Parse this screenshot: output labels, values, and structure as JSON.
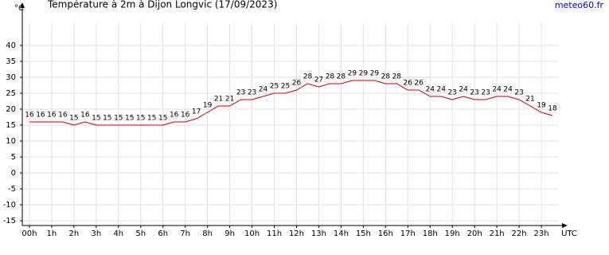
{
  "chart_data": {
    "type": "line",
    "title": "Température à 2m à Dijon Longvic (17/09/2023)",
    "source": "meteo60.fr",
    "y_label": "°C",
    "x_label": "UTC",
    "x": [
      0,
      0.5,
      1,
      1.5,
      2,
      2.5,
      3,
      3.5,
      4,
      4.5,
      5,
      5.5,
      6,
      6.5,
      7,
      7.5,
      8,
      8.5,
      9,
      9.5,
      10,
      10.5,
      11,
      11.5,
      12,
      12.5,
      13,
      13.5,
      14,
      14.5,
      15,
      15.5,
      16,
      16.5,
      17,
      17.5,
      18,
      18.5,
      19,
      19.5,
      20,
      20.5,
      21,
      21.5,
      22,
      22.5,
      23,
      23.5
    ],
    "series": [
      {
        "name": "Température",
        "color": "#cc0000",
        "values": [
          16,
          16,
          16,
          16,
          15,
          16,
          15,
          15,
          15,
          15,
          15,
          15,
          15,
          16,
          16,
          17,
          19,
          21,
          21,
          23,
          23,
          24,
          25,
          25,
          26,
          28,
          27,
          28,
          28,
          29,
          29,
          29,
          28,
          28,
          26,
          26,
          24,
          24,
          23,
          24,
          23,
          23,
          24,
          24,
          23,
          21,
          19,
          18
        ]
      }
    ],
    "xlim": [
      -0.32,
      24
    ],
    "xticks": [
      {
        "value": 0,
        "label": "00h"
      },
      {
        "value": 1,
        "label": "1h"
      },
      {
        "value": 2,
        "label": "2h"
      },
      {
        "value": 3,
        "label": "3h"
      },
      {
        "value": 4,
        "label": "4h"
      },
      {
        "value": 5,
        "label": "5h"
      },
      {
        "value": 6,
        "label": "6h"
      },
      {
        "value": 7,
        "label": "7h"
      },
      {
        "value": 8,
        "label": "8h"
      },
      {
        "value": 9,
        "label": "9h"
      },
      {
        "value": 10,
        "label": "10h"
      },
      {
        "value": 11,
        "label": "11h"
      },
      {
        "value": 12,
        "label": "12h"
      },
      {
        "value": 13,
        "label": "13h"
      },
      {
        "value": 14,
        "label": "14h"
      },
      {
        "value": 15,
        "label": "15h"
      },
      {
        "value": 16,
        "label": "16h"
      },
      {
        "value": 17,
        "label": "17h"
      },
      {
        "value": 18,
        "label": "18h"
      },
      {
        "value": 19,
        "label": "19h"
      },
      {
        "value": 20,
        "label": "20h"
      },
      {
        "value": 21,
        "label": "21h"
      },
      {
        "value": 22,
        "label": "22h"
      },
      {
        "value": 23,
        "label": "23h"
      }
    ],
    "ylim": [
      -16.5,
      47
    ],
    "yticks": [
      -15,
      -10,
      -5,
      0,
      5,
      10,
      15,
      20,
      25,
      30,
      35,
      40
    ],
    "grid": true
  }
}
